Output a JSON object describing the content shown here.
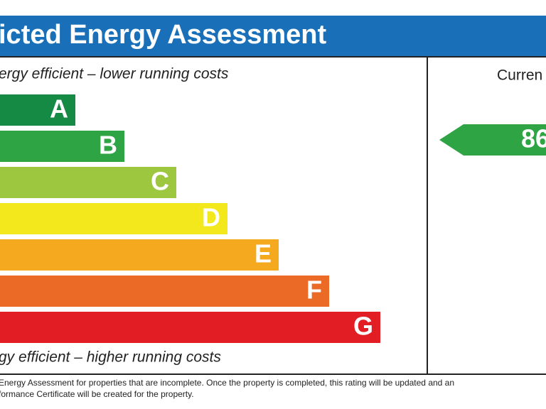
{
  "header": {
    "title": "icted Energy Assessment"
  },
  "scale": {
    "top_note": "ergy efficient – lower running costs",
    "bottom_note": "gy efficient – higher running costs",
    "bands": [
      {
        "letter": "A",
        "color": "#148a45"
      },
      {
        "letter": "B",
        "color": "#2ea444"
      },
      {
        "letter": "C",
        "color": "#9dc73e"
      },
      {
        "letter": "D",
        "color": "#f3e81c"
      },
      {
        "letter": "E",
        "color": "#f5a91e"
      },
      {
        "letter": "F",
        "color": "#eb6a25"
      },
      {
        "letter": "G",
        "color": "#e21d24"
      }
    ]
  },
  "current": {
    "heading": "Curren",
    "rating": 86,
    "color": "#2ea444"
  },
  "footnote": [
    " Energy Assessment for properties that are incomplete. Once the property is completed, this rating will be updated and an",
    "formance Certificate will be created for the property."
  ]
}
